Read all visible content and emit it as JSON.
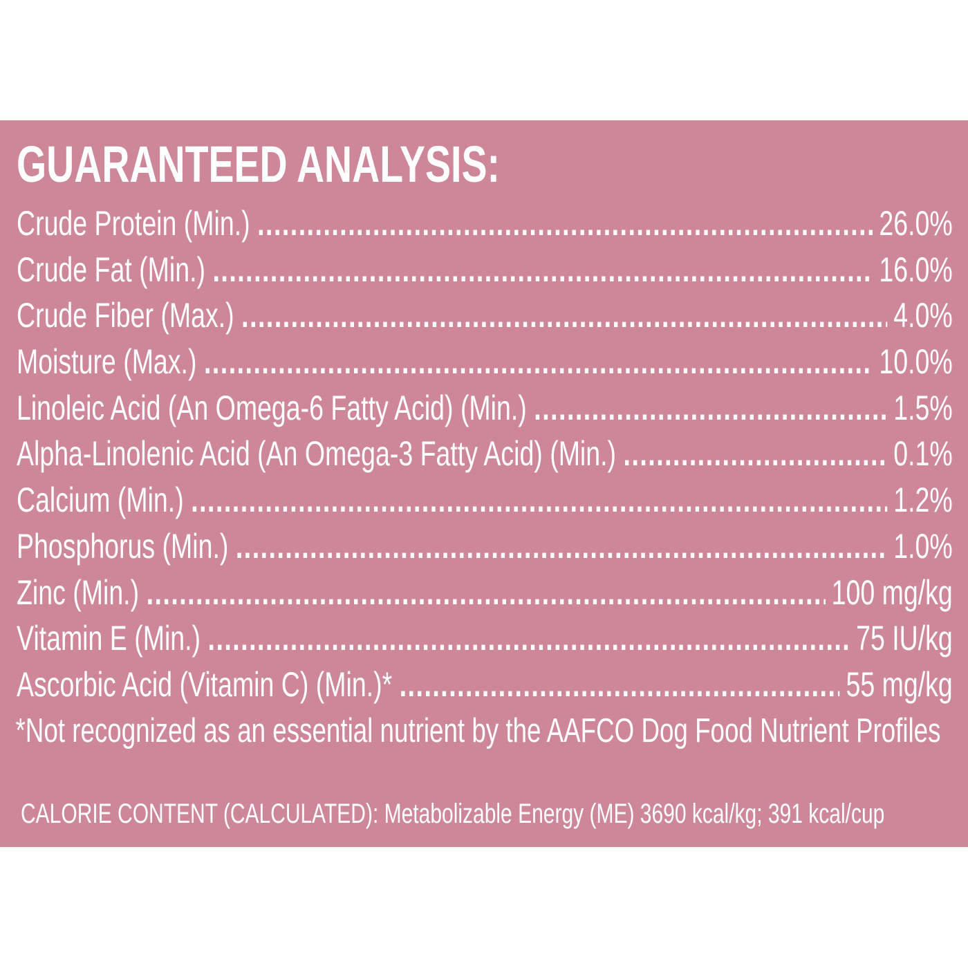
{
  "panel": {
    "background": "#cd8799",
    "title": "GUARANTEED ANALYSIS:",
    "rows": [
      {
        "label": "Crude Protein (Min.)",
        "value": "26.0%"
      },
      {
        "label": "Crude Fat (Min.)",
        "value": "16.0%"
      },
      {
        "label": "Crude Fiber (Max.)",
        "value": "4.0%"
      },
      {
        "label": "Moisture (Max.)",
        "value": "10.0%"
      },
      {
        "label": "Linoleic Acid (An Omega-6 Fatty Acid) (Min.)",
        "value": "1.5%"
      },
      {
        "label": "Alpha-Linolenic Acid (An Omega-3 Fatty Acid) (Min.)",
        "value": "0.1%"
      },
      {
        "label": "Calcium (Min.)",
        "value": "1.2%"
      },
      {
        "label": "Phosphorus (Min.)",
        "value": "1.0%"
      },
      {
        "label": "Zinc (Min.)",
        "value": "100 mg/kg"
      },
      {
        "label": "Vitamin E (Min.)",
        "value": "75 IU/kg"
      },
      {
        "label": "Ascorbic Acid (Vitamin C) (Min.)*",
        "value": "55 mg/kg"
      }
    ],
    "footnote": "*Not recognized as an essential nutrient by the AAFCO Dog Food Nutrient Profiles",
    "calorie": "CALORIE CONTENT (CALCULATED): Metabolizable Energy (ME) 3690 kcal/kg; 391 kcal/cup"
  }
}
